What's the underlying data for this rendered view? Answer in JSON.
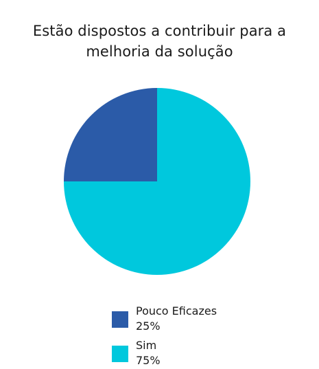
{
  "title_lines": [
    "Estão dispostos a contribuir para a",
    "melhoria da solução"
  ],
  "colors": {
    "pouco_eficazes": "#2b5ba8",
    "sim": "#00c8dd"
  },
  "chart_data": {
    "type": "pie",
    "title": "Estão dispostos a contribuir para a melhoria da solução",
    "categories": [
      "Pouco Eficazes",
      "Sim"
    ],
    "values": [
      25,
      75
    ],
    "value_labels": [
      "25%",
      "75%"
    ],
    "colors": [
      "#2b5ba8",
      "#00c8dd"
    ],
    "legend_position": "bottom"
  },
  "legend": [
    {
      "label": "Pouco Eficazes",
      "value": "25%"
    },
    {
      "label": "Sim",
      "value": "75%"
    }
  ]
}
